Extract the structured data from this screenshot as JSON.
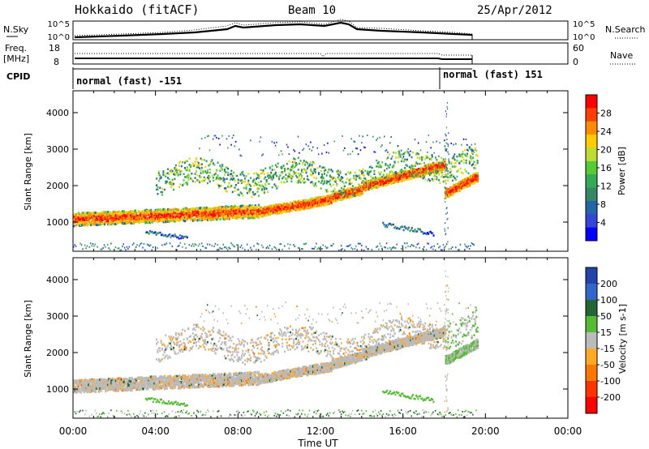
{
  "header": {
    "radar_name": "Hokkaido (fitACF)",
    "beam_label": "Beam 10",
    "date": "25/Apr/2012"
  },
  "top_panels": {
    "nsky_label": "N.Sky",
    "nsearch_label": "N.Search",
    "noise_ticks_left": [
      "10^5",
      "10^0"
    ],
    "noise_ticks_right": [
      "10^5",
      "10^0"
    ],
    "freq_label_1": "Freq.",
    "freq_label_2": "[MHz]",
    "freq_ticks": [
      "18",
      "8"
    ],
    "nave_label": "Nave",
    "nave_ticks": [
      "60",
      "0"
    ],
    "cpid_label": "CPID",
    "cpid_segments": [
      {
        "label": "normal (fast) -151",
        "start_hour": 0,
        "end_hour": 18.0
      },
      {
        "label": "normal (fast) 151",
        "start_hour": 18.0,
        "end_hour": 19.6
      }
    ]
  },
  "chart_data": [
    {
      "type": "heatmap",
      "name": "power",
      "ylabel": "Slant Range [km]",
      "x_range_hours": [
        0,
        24
      ],
      "ylim": [
        200,
        4600
      ],
      "yticks": [
        1000,
        2000,
        3000,
        4000
      ],
      "colorbar_label": "Power [dB]",
      "colorbar_ticks": [
        "28",
        "24",
        "20",
        "16",
        "12",
        "8",
        "4"
      ],
      "colorbar_colors": [
        "#ff0000",
        "#ff4000",
        "#ff8c00",
        "#ffcc00",
        "#bbdd33",
        "#55cc33",
        "#33aa55",
        "#338866",
        "#2266aa",
        "#3344dd",
        "#0000ff"
      ]
    },
    {
      "type": "heatmap",
      "name": "velocity",
      "ylabel": "Slant Range [km]",
      "xlabel": "Time UT",
      "x_range_hours": [
        0,
        24
      ],
      "xticks": [
        "00:00",
        "04:00",
        "08:00",
        "12:00",
        "16:00",
        "20:00",
        "00:00"
      ],
      "ylim": [
        200,
        4600
      ],
      "yticks": [
        1000,
        2000,
        3000,
        4000
      ],
      "colorbar_label": "Velocity [m s-1]",
      "colorbar_ticks": [
        "200",
        "100",
        "50",
        "15",
        "-15",
        "-50",
        "-100",
        "-200"
      ],
      "colorbar_colors": [
        "#2244aa",
        "#3366cc",
        "#226633",
        "#55bb33",
        "#bbbbbb",
        "#ffaa22",
        "#ff7700",
        "#ff3300",
        "#ff0000"
      ]
    }
  ]
}
